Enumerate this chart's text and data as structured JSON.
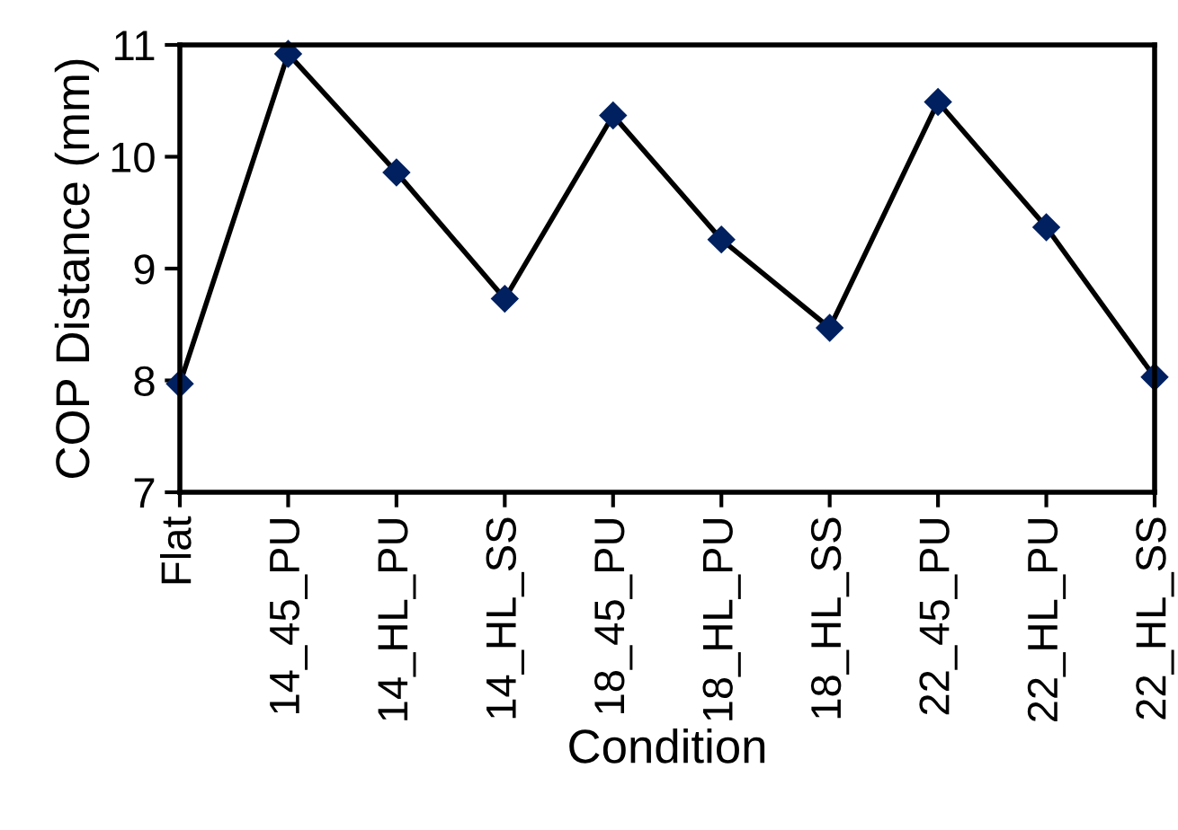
{
  "chart_data": {
    "type": "line",
    "xlabel": "Condition",
    "ylabel": "COP Distance (mm)",
    "categories": [
      "Flat",
      "14_45_PU",
      "14_HL_PU",
      "14_HL_SS",
      "18_45_PU",
      "18_HL_PU",
      "18_HL_SS",
      "22_45_PU",
      "22_HL_PU",
      "22_HL_SS"
    ],
    "series": [
      {
        "color": "#002060",
        "values": [
          7.97,
          10.92,
          9.86,
          8.73,
          10.37,
          9.26,
          8.47,
          10.49,
          9.37,
          8.03
        ]
      }
    ],
    "ylim": [
      7,
      11
    ],
    "yticks": [
      7,
      8,
      9,
      10,
      11
    ],
    "grid": false,
    "legend": false,
    "marker": "diamond",
    "line_style": "solid"
  }
}
